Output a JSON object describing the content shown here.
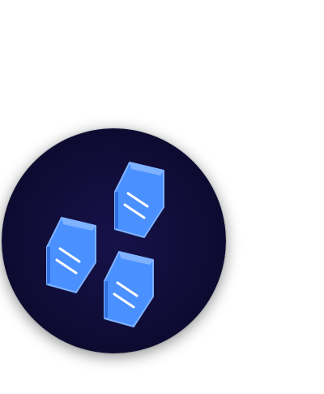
{
  "scene": {
    "background_color": "#ffffff",
    "badge": {
      "icon_name": "blue-crystals-icon",
      "circle_color": "#0d0a2e",
      "circle_glow_color": "#16124a",
      "crystal_color": "#4a90ff",
      "crystal_light_color": "#7fb2ff",
      "crystal_dark_color": "#2f6fe0",
      "stripe_color": "#ffffff",
      "crystal_count": 3
    }
  }
}
